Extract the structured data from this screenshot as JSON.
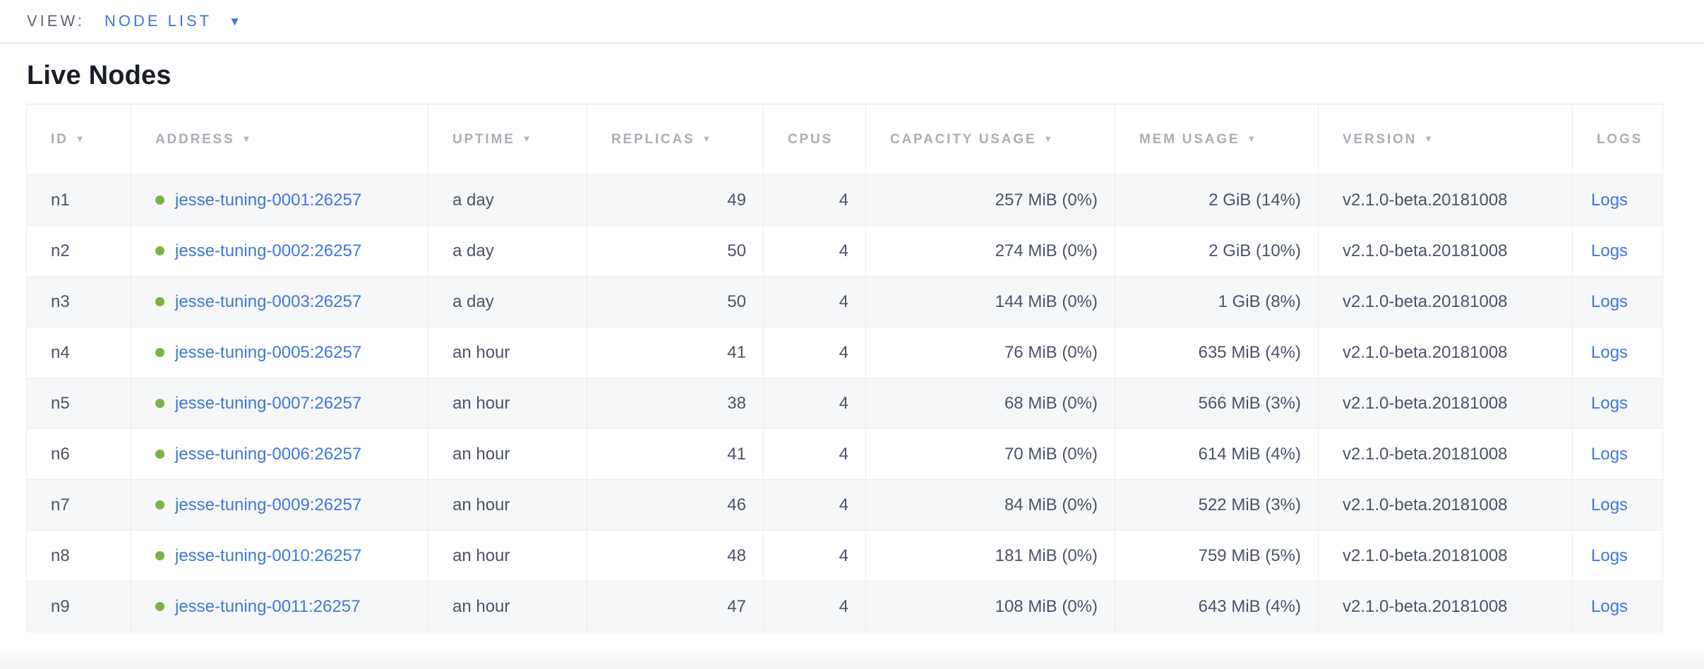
{
  "view_bar": {
    "label": "VIEW:",
    "selected_view": "NODE LIST"
  },
  "page": {
    "heading": "Live Nodes"
  },
  "table": {
    "columns": [
      {
        "label": "ID",
        "sortable": true
      },
      {
        "label": "ADDRESS",
        "sortable": true
      },
      {
        "label": "UPTIME",
        "sortable": true
      },
      {
        "label": "REPLICAS",
        "sortable": true
      },
      {
        "label": "CPUS",
        "sortable": false
      },
      {
        "label": "CAPACITY USAGE",
        "sortable": true
      },
      {
        "label": "MEM USAGE",
        "sortable": true
      },
      {
        "label": "VERSION",
        "sortable": true
      },
      {
        "label": "LOGS",
        "sortable": false
      }
    ],
    "rows": [
      {
        "id": "n1",
        "address": "jesse-tuning-0001:26257",
        "status": "healthy",
        "uptime": "a day",
        "replicas": "49",
        "cpus": "4",
        "capacity_usage": "257 MiB (0%)",
        "mem_usage": "2 GiB (14%)",
        "version": "v2.1.0-beta.20181008",
        "logs_label": "Logs"
      },
      {
        "id": "n2",
        "address": "jesse-tuning-0002:26257",
        "status": "healthy",
        "uptime": "a day",
        "replicas": "50",
        "cpus": "4",
        "capacity_usage": "274 MiB (0%)",
        "mem_usage": "2 GiB (10%)",
        "version": "v2.1.0-beta.20181008",
        "logs_label": "Logs"
      },
      {
        "id": "n3",
        "address": "jesse-tuning-0003:26257",
        "status": "healthy",
        "uptime": "a day",
        "replicas": "50",
        "cpus": "4",
        "capacity_usage": "144 MiB (0%)",
        "mem_usage": "1 GiB (8%)",
        "version": "v2.1.0-beta.20181008",
        "logs_label": "Logs"
      },
      {
        "id": "n4",
        "address": "jesse-tuning-0005:26257",
        "status": "healthy",
        "uptime": "an hour",
        "replicas": "41",
        "cpus": "4",
        "capacity_usage": "76 MiB (0%)",
        "mem_usage": "635 MiB (4%)",
        "version": "v2.1.0-beta.20181008",
        "logs_label": "Logs"
      },
      {
        "id": "n5",
        "address": "jesse-tuning-0007:26257",
        "status": "healthy",
        "uptime": "an hour",
        "replicas": "38",
        "cpus": "4",
        "capacity_usage": "68 MiB (0%)",
        "mem_usage": "566 MiB (3%)",
        "version": "v2.1.0-beta.20181008",
        "logs_label": "Logs"
      },
      {
        "id": "n6",
        "address": "jesse-tuning-0006:26257",
        "status": "healthy",
        "uptime": "an hour",
        "replicas": "41",
        "cpus": "4",
        "capacity_usage": "70 MiB (0%)",
        "mem_usage": "614 MiB (4%)",
        "version": "v2.1.0-beta.20181008",
        "logs_label": "Logs"
      },
      {
        "id": "n7",
        "address": "jesse-tuning-0009:26257",
        "status": "healthy",
        "uptime": "an hour",
        "replicas": "46",
        "cpus": "4",
        "capacity_usage": "84 MiB (0%)",
        "mem_usage": "522 MiB (3%)",
        "version": "v2.1.0-beta.20181008",
        "logs_label": "Logs"
      },
      {
        "id": "n8",
        "address": "jesse-tuning-0010:26257",
        "status": "healthy",
        "uptime": "an hour",
        "replicas": "48",
        "cpus": "4",
        "capacity_usage": "181 MiB (0%)",
        "mem_usage": "759 MiB (5%)",
        "version": "v2.1.0-beta.20181008",
        "logs_label": "Logs"
      },
      {
        "id": "n9",
        "address": "jesse-tuning-0011:26257",
        "status": "healthy",
        "uptime": "an hour",
        "replicas": "47",
        "cpus": "4",
        "capacity_usage": "108 MiB (0%)",
        "mem_usage": "643 MiB (4%)",
        "version": "v2.1.0-beta.20181008",
        "logs_label": "Logs"
      }
    ]
  },
  "colors": {
    "link_blue": "#3e78d8",
    "healthy_green": "#7cb342",
    "header_gray": "#a9aeb5",
    "cell_text": "#4b5367"
  }
}
